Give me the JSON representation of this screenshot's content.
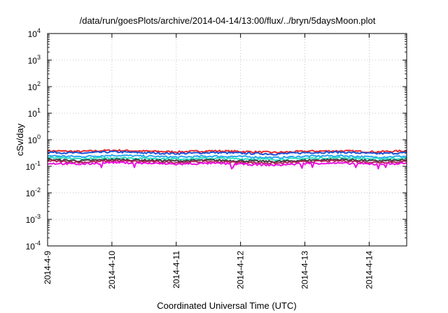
{
  "chart_data": {
    "type": "line",
    "title": "/data/run/goesPlots/archive/2014-04-14/13:00/flux/../bryn/5daysMoon.plot",
    "xlabel": "Coordinated Universal Time (UTC)",
    "ylabel": "cSv/day",
    "yscale": "log",
    "ylim": [
      0.0001,
      10000
    ],
    "y_ticks": [
      {
        "value": 0.0001,
        "base": "10",
        "exp": "-4"
      },
      {
        "value": 0.001,
        "base": "10",
        "exp": "-3"
      },
      {
        "value": 0.01,
        "base": "10",
        "exp": "-2"
      },
      {
        "value": 0.1,
        "base": "10",
        "exp": "-1"
      },
      {
        "value": 1,
        "base": "10",
        "exp": "0"
      },
      {
        "value": 10,
        "base": "10",
        "exp": "1"
      },
      {
        "value": 100,
        "base": "10",
        "exp": "2"
      },
      {
        "value": 1000,
        "base": "10",
        "exp": "3"
      },
      {
        "value": 10000,
        "base": "10",
        "exp": "4"
      }
    ],
    "xlim": [
      "2014-04-09 00:00",
      "2014-04-14 14:00"
    ],
    "x_ticks": [
      "2014-4-9",
      "2014-4-10",
      "2014-4-11",
      "2014-4-12",
      "2014-4-13",
      "2014-4-14"
    ],
    "grid": true,
    "legend": "none",
    "series": [
      {
        "color": "#e8262b",
        "level": 0.38,
        "values": [
          0.38,
          0.36,
          0.4,
          0.37,
          0.35,
          0.38,
          0.36,
          0.33,
          0.37,
          0.38,
          0.35,
          0.38
        ]
      },
      {
        "color": "#1f4fd6",
        "level": 0.33,
        "values": [
          0.34,
          0.31,
          0.35,
          0.32,
          0.3,
          0.33,
          0.31,
          0.29,
          0.33,
          0.34,
          0.3,
          0.32
        ]
      },
      {
        "color": "#2aa5f0",
        "level": 0.24,
        "values": [
          0.25,
          0.23,
          0.26,
          0.24,
          0.22,
          0.24,
          0.23,
          0.21,
          0.24,
          0.25,
          0.22,
          0.24
        ]
      },
      {
        "color": "#29dcc0",
        "level": 0.2,
        "values": [
          0.21,
          0.19,
          0.21,
          0.2,
          0.19,
          0.2,
          0.19,
          0.18,
          0.2,
          0.21,
          0.19,
          0.2
        ]
      },
      {
        "color": "#3c3c3c",
        "level": 0.17,
        "values": [
          0.18,
          0.16,
          0.18,
          0.17,
          0.16,
          0.17,
          0.16,
          0.15,
          0.17,
          0.18,
          0.16,
          0.17
        ]
      },
      {
        "color": "#b0245a",
        "level": 0.15,
        "values": [
          0.16,
          0.14,
          0.16,
          0.15,
          0.14,
          0.15,
          0.14,
          0.13,
          0.15,
          0.16,
          0.14,
          0.15
        ]
      },
      {
        "color": "#ee10e0",
        "level": 0.13,
        "values": [
          0.13,
          0.12,
          0.14,
          0.13,
          0.12,
          0.13,
          0.12,
          0.11,
          0.13,
          0.13,
          0.12,
          0.13
        ]
      }
    ]
  }
}
